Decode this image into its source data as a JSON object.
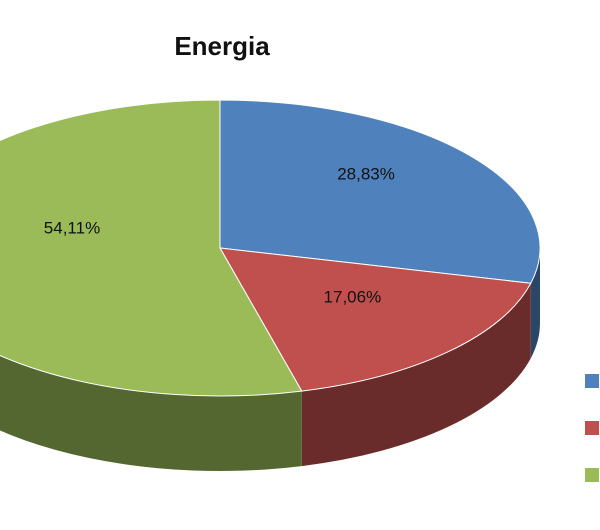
{
  "chart_data": {
    "type": "pie",
    "title": "Energia",
    "values": [
      28.83,
      17.06,
      54.11
    ],
    "value_labels": [
      "28,83%",
      "17,06%",
      "54,11%"
    ],
    "colors": [
      "#4f81bd",
      "#c0504d",
      "#9bbb59"
    ]
  }
}
